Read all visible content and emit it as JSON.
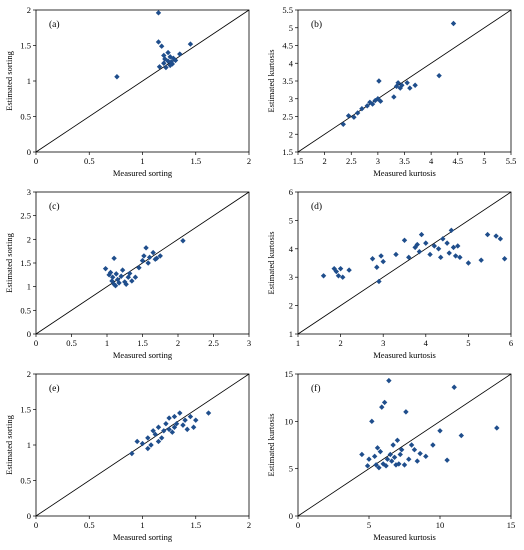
{
  "chart_data": [
    {
      "type": "scatter",
      "panel_label": "(a)",
      "xlabel": "Measured sorting",
      "ylabel": "Estimated sorting",
      "xlim": [
        0,
        2
      ],
      "ylim": [
        0,
        2
      ],
      "xticks": [
        0,
        0.5,
        1,
        1.5,
        2
      ],
      "yticks": [
        0,
        0.5,
        1,
        1.5,
        2
      ],
      "xtick_labels": [
        "0",
        "0.5",
        "1",
        "1.5",
        "2"
      ],
      "ytick_labels": [
        "0",
        "0.5",
        "1",
        "1.5",
        "2"
      ],
      "reference_line": "1:1",
      "marker": "diamond",
      "color": "#1f4e8c",
      "points": [
        [
          0.76,
          1.06
        ],
        [
          1.15,
          1.96
        ],
        [
          1.15,
          1.55
        ],
        [
          1.18,
          1.49
        ],
        [
          1.2,
          1.36
        ],
        [
          1.21,
          1.31
        ],
        [
          1.24,
          1.4
        ],
        [
          1.24,
          1.28
        ],
        [
          1.16,
          1.2
        ],
        [
          1.2,
          1.25
        ],
        [
          1.26,
          1.34
        ],
        [
          1.27,
          1.27
        ],
        [
          1.28,
          1.24
        ],
        [
          1.29,
          1.32
        ],
        [
          1.31,
          1.29
        ],
        [
          1.35,
          1.38
        ],
        [
          1.26,
          1.22
        ],
        [
          1.22,
          1.19
        ],
        [
          1.45,
          1.52
        ]
      ]
    },
    {
      "type": "scatter",
      "panel_label": "(b)",
      "xlabel": "Measured kurtosis",
      "ylabel": "Estimated kurtosis",
      "xlim": [
        1.5,
        5.5
      ],
      "ylim": [
        1.5,
        5.5
      ],
      "xticks": [
        1.5,
        2,
        2.5,
        3,
        3.5,
        4,
        4.5,
        5,
        5.5
      ],
      "yticks": [
        1.5,
        2,
        2.5,
        3,
        3.5,
        4,
        4.5,
        5,
        5.5
      ],
      "xtick_labels": [
        "1.5",
        "2",
        "2.5",
        "3",
        "3.5",
        "4",
        "4.5",
        "5",
        "5.5"
      ],
      "ytick_labels": [
        "1.5",
        "2",
        "2.5",
        "3",
        "3.5",
        "4",
        "4.5",
        "5",
        "5.5"
      ],
      "reference_line": "1:1",
      "marker": "diamond",
      "color": "#1f4e8c",
      "points": [
        [
          2.35,
          2.28
        ],
        [
          2.45,
          2.52
        ],
        [
          2.55,
          2.48
        ],
        [
          2.62,
          2.6
        ],
        [
          2.7,
          2.72
        ],
        [
          2.8,
          2.8
        ],
        [
          2.85,
          2.9
        ],
        [
          2.9,
          2.85
        ],
        [
          2.95,
          2.95
        ],
        [
          3.0,
          3.0
        ],
        [
          3.02,
          3.5
        ],
        [
          3.05,
          2.93
        ],
        [
          3.3,
          3.05
        ],
        [
          3.35,
          3.35
        ],
        [
          3.38,
          3.45
        ],
        [
          3.42,
          3.3
        ],
        [
          3.45,
          3.38
        ],
        [
          3.55,
          3.45
        ],
        [
          3.6,
          3.3
        ],
        [
          3.7,
          3.38
        ],
        [
          4.15,
          3.65
        ],
        [
          4.42,
          5.12
        ]
      ]
    },
    {
      "type": "scatter",
      "panel_label": "(c)",
      "xlabel": "Measured sorting",
      "ylabel": "Estimated sorting",
      "xlim": [
        0,
        3
      ],
      "ylim": [
        0,
        3
      ],
      "xticks": [
        0,
        0.5,
        1,
        1.5,
        2,
        2.5,
        3
      ],
      "yticks": [
        0,
        0.5,
        1,
        1.5,
        2,
        2.5,
        3
      ],
      "xtick_labels": [
        "0",
        "0.5",
        "1",
        "1.5",
        "2",
        "2.5",
        "3"
      ],
      "ytick_labels": [
        "0",
        "0.5",
        "1",
        "1.5",
        "2",
        "2.5",
        "3"
      ],
      "reference_line": "1:1",
      "marker": "diamond",
      "color": "#1f4e8c",
      "points": [
        [
          0.98,
          1.38
        ],
        [
          1.03,
          1.25
        ],
        [
          1.05,
          1.3
        ],
        [
          1.07,
          1.12
        ],
        [
          1.08,
          1.2
        ],
        [
          1.1,
          1.05
        ],
        [
          1.1,
          1.6
        ],
        [
          1.12,
          1.02
        ],
        [
          1.13,
          1.27
        ],
        [
          1.15,
          1.15
        ],
        [
          1.17,
          1.08
        ],
        [
          1.2,
          1.22
        ],
        [
          1.22,
          1.35
        ],
        [
          1.25,
          1.1
        ],
        [
          1.27,
          1.05
        ],
        [
          1.3,
          1.2
        ],
        [
          1.32,
          1.28
        ],
        [
          1.35,
          1.12
        ],
        [
          1.4,
          1.2
        ],
        [
          1.45,
          1.4
        ],
        [
          1.5,
          1.55
        ],
        [
          1.52,
          1.65
        ],
        [
          1.55,
          1.82
        ],
        [
          1.58,
          1.5
        ],
        [
          1.6,
          1.62
        ],
        [
          1.65,
          1.72
        ],
        [
          1.68,
          1.58
        ],
        [
          1.7,
          1.6
        ],
        [
          1.75,
          1.65
        ],
        [
          2.07,
          1.97
        ]
      ]
    },
    {
      "type": "scatter",
      "panel_label": "(d)",
      "xlabel": "Measured kurtosis",
      "ylabel": "Estimated kurtosis",
      "xlim": [
        1,
        6
      ],
      "ylim": [
        1,
        6
      ],
      "xticks": [
        1,
        2,
        3,
        4,
        5,
        6
      ],
      "yticks": [
        1,
        2,
        3,
        4,
        5,
        6
      ],
      "xtick_labels": [
        "1",
        "2",
        "3",
        "4",
        "5",
        "6"
      ],
      "ytick_labels": [
        "1",
        "2",
        "3",
        "4",
        "5",
        "6"
      ],
      "reference_line": "1:1",
      "marker": "diamond",
      "color": "#1f4e8c",
      "points": [
        [
          1.6,
          3.05
        ],
        [
          1.85,
          3.3
        ],
        [
          1.9,
          3.2
        ],
        [
          1.95,
          3.05
        ],
        [
          2.0,
          3.3
        ],
        [
          2.05,
          3.0
        ],
        [
          2.2,
          3.25
        ],
        [
          2.75,
          3.65
        ],
        [
          2.85,
          3.35
        ],
        [
          2.9,
          2.85
        ],
        [
          2.95,
          3.75
        ],
        [
          3.0,
          3.55
        ],
        [
          3.3,
          3.8
        ],
        [
          3.5,
          4.3
        ],
        [
          3.6,
          3.7
        ],
        [
          3.75,
          4.05
        ],
        [
          3.8,
          4.15
        ],
        [
          3.85,
          3.9
        ],
        [
          3.9,
          4.5
        ],
        [
          4.0,
          4.2
        ],
        [
          4.1,
          3.8
        ],
        [
          4.2,
          4.1
        ],
        [
          4.3,
          4.0
        ],
        [
          4.35,
          3.7
        ],
        [
          4.4,
          4.35
        ],
        [
          4.5,
          4.2
        ],
        [
          4.55,
          3.85
        ],
        [
          4.6,
          4.65
        ],
        [
          4.65,
          4.05
        ],
        [
          4.7,
          3.75
        ],
        [
          4.75,
          4.1
        ],
        [
          4.8,
          3.7
        ],
        [
          5.0,
          3.5
        ],
        [
          5.3,
          3.6
        ],
        [
          5.45,
          4.5
        ],
        [
          5.65,
          4.45
        ],
        [
          5.75,
          4.35
        ],
        [
          5.85,
          3.65
        ]
      ]
    },
    {
      "type": "scatter",
      "panel_label": "(e)",
      "xlabel": "Measured sorting",
      "ylabel": "Estimated sorting",
      "xlim": [
        0,
        2
      ],
      "ylim": [
        0,
        2
      ],
      "xticks": [
        0,
        0.5,
        1,
        1.5,
        2
      ],
      "yticks": [
        0,
        0.5,
        1,
        1.5,
        2
      ],
      "xtick_labels": [
        "0",
        "0.5",
        "1",
        "1.5",
        "2"
      ],
      "ytick_labels": [
        "0",
        "0.5",
        "1",
        "1.5",
        "2"
      ],
      "reference_line": "1:1",
      "marker": "diamond",
      "color": "#1f4e8c",
      "points": [
        [
          0.9,
          0.88
        ],
        [
          0.95,
          1.05
        ],
        [
          1.0,
          1.02
        ],
        [
          1.05,
          1.1
        ],
        [
          1.05,
          0.95
        ],
        [
          1.08,
          1.0
        ],
        [
          1.1,
          1.2
        ],
        [
          1.12,
          1.15
        ],
        [
          1.15,
          1.25
        ],
        [
          1.15,
          1.05
        ],
        [
          1.18,
          1.1
        ],
        [
          1.2,
          1.2
        ],
        [
          1.22,
          1.3
        ],
        [
          1.25,
          1.22
        ],
        [
          1.25,
          1.38
        ],
        [
          1.28,
          1.18
        ],
        [
          1.3,
          1.4
        ],
        [
          1.3,
          1.25
        ],
        [
          1.32,
          1.3
        ],
        [
          1.35,
          1.45
        ],
        [
          1.38,
          1.28
        ],
        [
          1.4,
          1.35
        ],
        [
          1.42,
          1.22
        ],
        [
          1.45,
          1.4
        ],
        [
          1.48,
          1.25
        ],
        [
          1.5,
          1.35
        ],
        [
          1.62,
          1.45
        ]
      ]
    },
    {
      "type": "scatter",
      "panel_label": "(f)",
      "xlabel": "Measured kurtosis",
      "ylabel": "Estimated kurtosis",
      "xlim": [
        0,
        15
      ],
      "ylim": [
        0,
        15
      ],
      "xticks": [
        0,
        5,
        10,
        15
      ],
      "yticks": [
        0,
        5,
        10,
        15
      ],
      "xtick_labels": [
        "0",
        "5",
        "10",
        "15"
      ],
      "ytick_labels": [
        "0",
        "5",
        "10",
        "15"
      ],
      "reference_line": "1:1",
      "marker": "diamond",
      "color": "#1f4e8c",
      "points": [
        [
          4.5,
          6.5
        ],
        [
          4.9,
          5.3
        ],
        [
          5.0,
          6.0
        ],
        [
          5.2,
          10.0
        ],
        [
          5.4,
          6.3
        ],
        [
          5.5,
          5.4
        ],
        [
          5.6,
          7.2
        ],
        [
          5.7,
          5.1
        ],
        [
          5.8,
          6.8
        ],
        [
          5.9,
          11.5
        ],
        [
          6.0,
          5.5
        ],
        [
          6.1,
          12.0
        ],
        [
          6.2,
          5.3
        ],
        [
          6.3,
          6.0
        ],
        [
          6.4,
          14.3
        ],
        [
          6.5,
          6.5
        ],
        [
          6.6,
          5.8
        ],
        [
          6.7,
          7.5
        ],
        [
          6.8,
          6.2
        ],
        [
          6.9,
          5.4
        ],
        [
          7.0,
          8.0
        ],
        [
          7.1,
          5.5
        ],
        [
          7.2,
          6.5
        ],
        [
          7.3,
          7.0
        ],
        [
          7.5,
          5.4
        ],
        [
          7.6,
          11.0
        ],
        [
          7.8,
          6.0
        ],
        [
          8.0,
          7.5
        ],
        [
          8.2,
          7.0
        ],
        [
          8.4,
          5.8
        ],
        [
          8.6,
          6.6
        ],
        [
          9.0,
          6.3
        ],
        [
          9.5,
          7.5
        ],
        [
          10.0,
          9.0
        ],
        [
          10.5,
          5.9
        ],
        [
          11.0,
          13.6
        ],
        [
          11.5,
          8.5
        ],
        [
          14.0,
          9.3
        ]
      ]
    }
  ]
}
